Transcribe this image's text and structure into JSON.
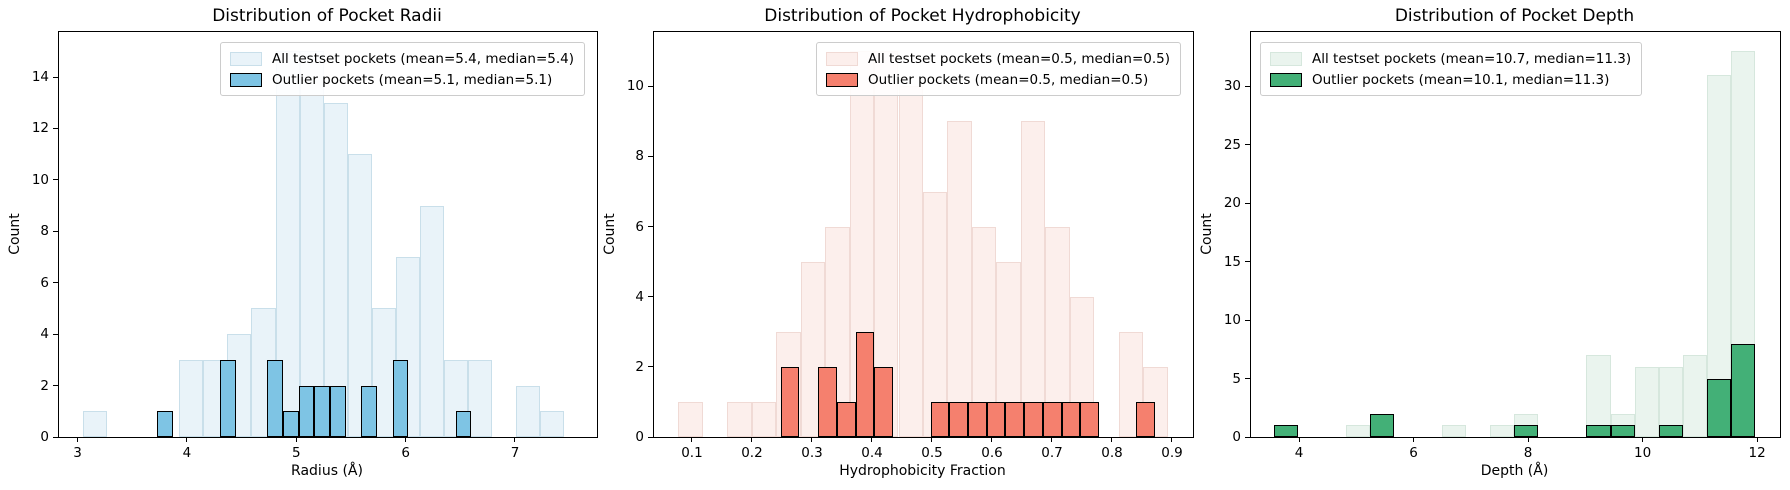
{
  "figure": {
    "background": "#ffffff",
    "text_color": "#000000"
  },
  "chart_data": [
    {
      "type": "histogram",
      "title": "Distribution of Pocket Radii",
      "xlabel": "Radius (Å)",
      "ylabel": "Count",
      "xlim": [
        2.83,
        7.75
      ],
      "ylim": [
        0,
        15.75
      ],
      "grid": false,
      "legend_loc": "upper right",
      "xticks": {
        "values": [
          3,
          4,
          5,
          6,
          7
        ],
        "labels": [
          "3",
          "4",
          "5",
          "6",
          "7"
        ]
      },
      "yticks": {
        "values": [
          0,
          2,
          4,
          6,
          8,
          10,
          12,
          14
        ],
        "labels": [
          "0",
          "2",
          "4",
          "6",
          "8",
          "10",
          "12",
          "14"
        ]
      },
      "series": [
        {
          "name": "all-testset-pockets",
          "label": "All testset pockets (mean=5.4, median=5.4)",
          "mean": 5.4,
          "median": 5.4,
          "bin_start": 3.05,
          "bin_width": 0.22,
          "counts": [
            1,
            0,
            0,
            0,
            3,
            3,
            4,
            5,
            15,
            15,
            13,
            11,
            5,
            7,
            9,
            3,
            3,
            0,
            2,
            1
          ],
          "fill": "#e9f3f9",
          "edge": "#c9dfea",
          "edge_width": 1
        },
        {
          "name": "outlier-pockets",
          "label": "Outlier pockets (mean=5.1, median=5.1)",
          "mean": 5.1,
          "median": 5.1,
          "bin_start": 3.73,
          "bin_width": 0.1435,
          "counts": [
            1,
            0,
            0,
            0,
            3,
            0,
            0,
            3,
            1,
            2,
            2,
            2,
            0,
            2,
            0,
            3,
            0,
            0,
            0,
            1
          ],
          "fill": "#7ec4e4",
          "edge": "#000000",
          "edge_width": 1.5
        }
      ]
    },
    {
      "type": "histogram",
      "title": "Distribution of Pocket Hydrophobicity",
      "xlabel": "Hydrophobicity Fraction",
      "ylabel": "Count",
      "xlim": [
        0.0367,
        0.935
      ],
      "ylim": [
        0,
        11.55
      ],
      "grid": false,
      "legend_loc": "upper right",
      "xticks": {
        "values": [
          0.1,
          0.2,
          0.3,
          0.4,
          0.5,
          0.6,
          0.7,
          0.8,
          0.9
        ],
        "labels": [
          "0.1",
          "0.2",
          "0.3",
          "0.4",
          "0.5",
          "0.6",
          "0.7",
          "0.8",
          "0.9"
        ]
      },
      "yticks": {
        "values": [
          0,
          2,
          4,
          6,
          8,
          10
        ],
        "labels": [
          "0",
          "2",
          "4",
          "6",
          "8",
          "10"
        ]
      },
      "series": [
        {
          "name": "all-testset-pockets",
          "label": "All testset pockets (mean=0.5, median=0.5)",
          "mean": 0.5,
          "median": 0.5,
          "bin_start": 0.077,
          "bin_width": 0.0408,
          "counts": [
            1,
            0,
            1,
            1,
            3,
            5,
            6,
            11,
            11,
            10,
            7,
            9,
            6,
            5,
            9,
            6,
            4,
            0,
            3,
            2
          ],
          "fill": "#fcefec",
          "edge": "#f0dad5",
          "edge_width": 1
        },
        {
          "name": "outlier-pockets",
          "label": "Outlier pockets (mean=0.5, median=0.5)",
          "mean": 0.5,
          "median": 0.5,
          "bin_start": 0.248,
          "bin_width": 0.0312,
          "counts": [
            2,
            0,
            2,
            1,
            3,
            2,
            0,
            0,
            1,
            1,
            1,
            1,
            1,
            1,
            1,
            1,
            1,
            0,
            0,
            1
          ],
          "fill": "#f5806e",
          "edge": "#000000",
          "edge_width": 1.5
        }
      ]
    },
    {
      "type": "histogram",
      "title": "Distribution of Pocket Depth",
      "xlabel": "Depth (Å)",
      "ylabel": "Count",
      "xlim": [
        3.16,
        12.4
      ],
      "ylim": [
        0,
        34.65
      ],
      "grid": false,
      "legend_loc": "upper left",
      "xticks": {
        "values": [
          4,
          6,
          8,
          10,
          12
        ],
        "labels": [
          "4",
          "6",
          "8",
          "10",
          "12"
        ]
      },
      "yticks": {
        "values": [
          0,
          5,
          10,
          15,
          20,
          25,
          30
        ],
        "labels": [
          "0",
          "5",
          "10",
          "15",
          "20",
          "25",
          "30"
        ]
      },
      "series": [
        {
          "name": "all-testset-pockets",
          "label": "All testset pockets (mean=10.7, median=11.3)",
          "mean": 10.7,
          "median": 11.3,
          "bin_start": 3.56,
          "bin_width": 0.42,
          "counts": [
            1,
            0,
            0,
            1,
            2,
            0,
            0,
            1,
            0,
            1,
            2,
            0,
            0,
            7,
            2,
            6,
            6,
            7,
            31,
            33
          ],
          "fill": "#eaf4ee",
          "edge": "#d6e7dd",
          "edge_width": 1
        },
        {
          "name": "outlier-pockets",
          "label": "Outlier pockets (mean=10.1, median=11.3)",
          "mean": 10.1,
          "median": 11.3,
          "bin_start": 3.56,
          "bin_width": 0.42,
          "counts": [
            1,
            0,
            0,
            0,
            2,
            0,
            0,
            0,
            0,
            0,
            1,
            0,
            0,
            1,
            1,
            0,
            1,
            0,
            5,
            8
          ],
          "fill": "#43b077",
          "edge": "#000000",
          "edge_width": 1.5
        }
      ]
    }
  ]
}
